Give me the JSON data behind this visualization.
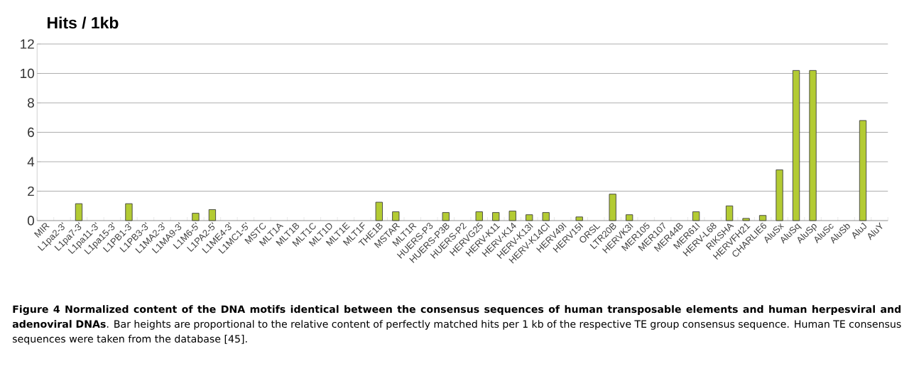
{
  "chart_data": {
    "type": "bar",
    "title": "Hits / 1kb",
    "categories": [
      "MIR",
      "L1pa2-3'",
      "L1pa7-3'",
      "L1pa11-3'",
      "L1pa15-3'",
      "L1PB1-3'",
      "L1PB3-3'",
      "L1MA2-3'",
      "L1MA9-3'",
      "L1M6-5'",
      "L1PA2-5'",
      "L1ME4-3'",
      "L1MC1-5'",
      "MSTC",
      "MLT1A",
      "MLT1B",
      "MLT1C",
      "MLT1D",
      "MLT1E",
      "MLT1F",
      "THE1B",
      "MSTAR",
      "MLT1R",
      "HUERS-P3",
      "HUERS-P3B",
      "HUERS-P2",
      "HERVG25",
      "HERV-K11",
      "HERV-K14",
      "HERV-K13I",
      "HERV-K14CI",
      "HERV49I",
      "HERV15I",
      "ORSL",
      "LTR20B",
      "HERVK3I",
      "MER105",
      "MER107",
      "MER44B",
      "MER61I",
      "HERV-L68",
      "RIKSHA",
      "HERVFH21",
      "CHARLIE6",
      "AluSx",
      "AluSq",
      "AluSp",
      "AluSc",
      "AluSb",
      "AluJ",
      "AluY"
    ],
    "values": [
      0,
      0,
      1.15,
      0,
      0,
      1.15,
      0,
      0,
      0,
      0.5,
      0.75,
      0,
      0,
      0,
      0,
      0,
      0,
      0,
      0,
      0,
      1.25,
      0.6,
      0,
      0,
      0.55,
      0,
      0.6,
      0.55,
      0.65,
      0.4,
      0.55,
      0,
      0.25,
      0,
      1.8,
      0.4,
      0,
      0,
      0,
      0.6,
      0,
      1.0,
      0.15,
      0.35,
      3.45,
      10.2,
      10.2,
      0,
      0,
      6.8,
      0
    ],
    "color": "#b3cb33",
    "ylim": [
      0,
      12
    ],
    "yticks": [
      0,
      2,
      4,
      6,
      8,
      10,
      12
    ],
    "grid": "y",
    "annotations": [
      "**Figure 4 Normalized content of the DNA motifs identical between the consensus sequences of human transposable elements and human herpesviral and adenoviral DNAs**. Bar heights are proportional to the relative content of perfectly matched hits per 1 kb of the respective TE group consensus sequence. Human TE consensus sequences were taken from the database [45]."
    ]
  }
}
